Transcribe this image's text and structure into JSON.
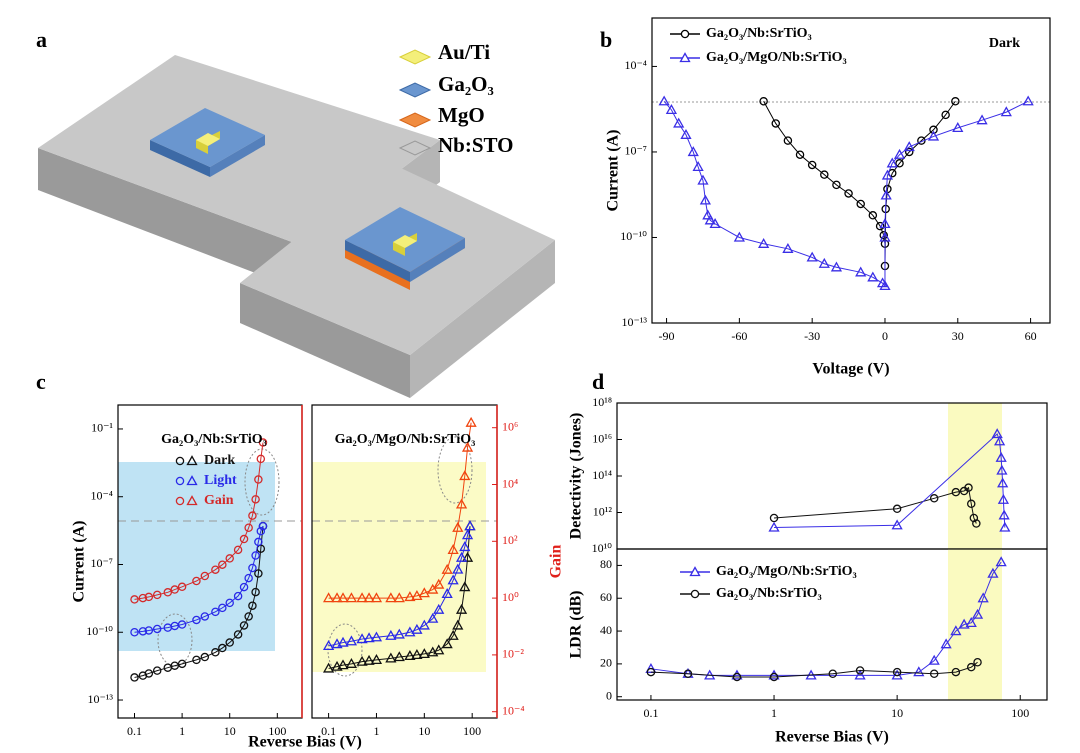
{
  "diagram": {
    "label": "a",
    "legend": [
      "Au/Ti",
      "Ga₂O₃",
      "MgO",
      "Nb:STO"
    ]
  },
  "chart_data": [
    {
      "type": "line",
      "label": "b",
      "annotation": "Dark",
      "xlabel": "Voltage (V)",
      "ylabel": "Current (A)",
      "xlim": [
        -96,
        68
      ],
      "xticks": [
        -90,
        -60,
        -30,
        0,
        30,
        60
      ],
      "yscale": "log",
      "ylim": [
        1e-13,
        0.005
      ],
      "yticks": [
        {
          "value": 1e-13,
          "label": "10⁻¹³"
        },
        {
          "value": 1e-10,
          "label": "10⁻¹⁰"
        },
        {
          "value": 1e-07,
          "label": "10⁻⁷"
        },
        {
          "value": 0.0001,
          "label": "10⁻⁴"
        }
      ],
      "series": [
        {
          "name": "Ga₂O₃/Nb:SrTiO₃",
          "color": "#000000",
          "marker": "circle",
          "x": [
            -50,
            -45,
            -40,
            -35,
            -30,
            -25,
            -20,
            -15,
            -10,
            -5,
            -2,
            -0.5,
            0,
            0,
            0.3,
            1,
            3,
            6,
            10,
            15,
            20,
            25,
            29
          ],
          "values": [
            6e-06,
            1e-06,
            2.5e-07,
            8e-08,
            3.5e-08,
            1.6e-08,
            7e-09,
            3.5e-09,
            1.5e-09,
            6e-10,
            2.5e-10,
            1.2e-10,
            6e-11,
            1e-11,
            1e-09,
            5e-09,
            1.8e-08,
            4e-08,
            1e-07,
            2.5e-07,
            6e-07,
            2e-06,
            6e-06
          ]
        },
        {
          "name": "Ga₂O₃/MgO/Nb:SrTiO₃",
          "color": "#3a2ee6",
          "marker": "triangle",
          "x": [
            -91,
            -88,
            -85,
            -82,
            -79,
            -77,
            -75,
            -74,
            -73,
            -72,
            -70,
            -60,
            -50,
            -40,
            -30,
            -25,
            -20,
            -10,
            -5,
            -1,
            0,
            0,
            0,
            0.5,
            1,
            3,
            6,
            10,
            20,
            30,
            40,
            50,
            59
          ],
          "values": [
            6e-06,
            3e-06,
            1e-06,
            4e-07,
            1e-07,
            3e-08,
            1e-08,
            2e-09,
            6e-10,
            4e-10,
            3e-10,
            1e-10,
            6e-11,
            4e-11,
            2e-11,
            1.2e-11,
            9e-12,
            6e-12,
            4e-12,
            2.5e-12,
            2e-12,
            1e-10,
            3e-10,
            3e-09,
            1.5e-08,
            4e-08,
            8e-08,
            1.5e-07,
            3.5e-07,
            7e-07,
            1.3e-06,
            2.5e-06,
            6e-06
          ]
        }
      ]
    },
    {
      "type": "line",
      "label": "c",
      "title": "Ga₂O₃/Nb:SrTiO₃",
      "xlabel": "Reverse Bias (V)",
      "ylabel": "Current (A)",
      "xscale": "log",
      "xlim": [
        0.045,
        330
      ],
      "xticks": [
        0.1,
        1,
        10,
        100
      ],
      "yscale": "log",
      "ylim": [
        1.6e-14,
        1.15
      ],
      "yticks": [
        {
          "value": 1e-13,
          "label": "10⁻¹³"
        },
        {
          "value": 1e-10,
          "label": "10⁻¹⁰"
        },
        {
          "value": 1e-07,
          "label": "10⁻⁷"
        },
        {
          "value": 0.0001,
          "label": "10⁻⁴"
        },
        {
          "value": 0.1,
          "label": "10⁻¹"
        }
      ],
      "y2scale": "log",
      "y2lim": [
        6e-05,
        6300000.0
      ],
      "series": [
        {
          "name": "Dark",
          "color": "#111111",
          "marker": "circle",
          "x": [
            0.1,
            0.15,
            0.2,
            0.3,
            0.5,
            0.7,
            1,
            2,
            3,
            5,
            7,
            10,
            15,
            20,
            25,
            30,
            35,
            40,
            45,
            50
          ],
          "values": [
            1e-12,
            1.2e-12,
            1.5e-12,
            2e-12,
            2.7e-12,
            3.3e-12,
            4e-12,
            6e-12,
            8e-12,
            1.3e-11,
            2e-11,
            3.5e-11,
            8e-11,
            2e-10,
            5e-10,
            1.5e-09,
            6e-09,
            4e-08,
            5e-07,
            5e-06
          ]
        },
        {
          "name": "Light",
          "color": "#2a2ae8",
          "marker": "circle",
          "x": [
            0.1,
            0.15,
            0.2,
            0.3,
            0.5,
            0.7,
            1,
            2,
            3,
            5,
            7,
            10,
            15,
            20,
            25,
            30,
            35,
            40,
            45,
            50
          ],
          "values": [
            1e-10,
            1.1e-10,
            1.2e-10,
            1.4e-10,
            1.6e-10,
            1.9e-10,
            2.2e-10,
            3.5e-10,
            5e-10,
            8e-10,
            1.2e-09,
            2e-09,
            4e-09,
            1e-08,
            2.5e-08,
            7e-08,
            2.5e-07,
            1e-06,
            3e-06,
            5e-06
          ]
        },
        {
          "name": "Gain",
          "color": "#d42a2a",
          "marker": "circle",
          "axis": "y2",
          "x": [
            0.1,
            0.15,
            0.2,
            0.3,
            0.5,
            0.7,
            1,
            2,
            3,
            5,
            7,
            10,
            15,
            20,
            25,
            30,
            35,
            40,
            45,
            50
          ],
          "values": [
            0.9,
            1,
            1.1,
            1.3,
            1.6,
            2,
            2.5,
            4,
            6,
            10,
            15,
            25,
            50,
            120,
            300,
            800,
            3000,
            15000,
            80000,
            300000
          ]
        }
      ]
    },
    {
      "type": "line",
      "title": "Ga₂O₃/MgO/Nb:SrTiO₃",
      "y2label": "Gain",
      "xscale": "log",
      "xlim": [
        0.045,
        330
      ],
      "xticks": [
        0.1,
        1,
        10,
        100
      ],
      "yscale": "log",
      "ylim": [
        1.6e-14,
        1.15
      ],
      "y2scale": "log",
      "y2lim": [
        6e-05,
        6300000.0
      ],
      "y2ticks": [
        {
          "value": 0.0001,
          "label": "10⁻⁴"
        },
        {
          "value": 0.01,
          "label": "10⁻²"
        },
        {
          "value": 1,
          "label": "10⁰"
        },
        {
          "value": 100,
          "label": "10²"
        },
        {
          "value": 10000,
          "label": "10⁴"
        },
        {
          "value": 1000000,
          "label": "10⁶"
        }
      ],
      "series": [
        {
          "color": "#111111",
          "marker": "triangle",
          "x": [
            0.1,
            0.15,
            0.2,
            0.3,
            0.5,
            0.7,
            1,
            2,
            3,
            5,
            7,
            10,
            15,
            20,
            30,
            40,
            50,
            60,
            70,
            80,
            90
          ],
          "values": [
            2.5e-12,
            3e-12,
            3.5e-12,
            4e-12,
            5e-12,
            5.5e-12,
            6e-12,
            7e-12,
            8e-12,
            9e-12,
            1e-11,
            1.1e-11,
            1.3e-11,
            1.6e-11,
            3e-11,
            7e-11,
            2e-10,
            1e-09,
            1e-08,
            2e-07,
            5e-06
          ]
        },
        {
          "color": "#2a2ae8",
          "marker": "triangle",
          "x": [
            0.1,
            0.15,
            0.2,
            0.3,
            0.5,
            0.7,
            1,
            2,
            3,
            5,
            7,
            10,
            15,
            20,
            30,
            40,
            50,
            60,
            70,
            80,
            90
          ],
          "values": [
            2.5e-11,
            3e-11,
            3.5e-11,
            4e-11,
            5e-11,
            5.5e-11,
            6e-11,
            7e-11,
            8e-11,
            1e-10,
            1.3e-10,
            2e-10,
            4e-10,
            1e-09,
            5e-09,
            2e-08,
            6e-08,
            2e-07,
            6e-07,
            2e-06,
            5e-06
          ]
        },
        {
          "color": "#f0440f",
          "marker": "triangle",
          "axis": "y2",
          "x": [
            0.1,
            0.15,
            0.2,
            0.3,
            0.5,
            0.7,
            1,
            2,
            3,
            5,
            7,
            10,
            15,
            20,
            30,
            40,
            50,
            60,
            70,
            80,
            95
          ],
          "values": [
            1,
            1,
            1,
            1,
            1,
            1,
            1,
            1,
            1,
            1.1,
            1.2,
            1.5,
            2,
            3,
            10,
            50,
            300,
            2000,
            20000,
            200000,
            1500000
          ]
        }
      ]
    },
    {
      "type": "line",
      "label": "d",
      "ylabel": "Detectivity (Jones)",
      "xscale": "log",
      "xlim": [
        0.053,
        165
      ],
      "yscale": "log",
      "ylim": [
        10000000000.0,
        1e+18
      ],
      "yticks": [
        {
          "value": 10000000000.0,
          "label": "10¹⁰"
        },
        {
          "value": 1000000000000.0,
          "label": "10¹²"
        },
        {
          "value": 100000000000000.0,
          "label": "10¹⁴"
        },
        {
          "value": 1e+16,
          "label": "10¹⁶"
        },
        {
          "value": 1e+18,
          "label": "10¹⁸"
        }
      ],
      "series": [
        {
          "color": "#111111",
          "marker": "circle",
          "x": [
            1,
            10,
            20,
            30,
            35,
            38,
            40,
            42,
            44
          ],
          "values": [
            500000000000.0,
            1600000000000.0,
            6000000000000.0,
            13000000000000.0,
            15000000000000.0,
            23000000000000.0,
            3000000000000.0,
            500000000000.0,
            250000000000.0
          ]
        },
        {
          "color": "#3a2ee6",
          "marker": "triangle",
          "x": [
            1,
            10,
            65,
            68,
            70,
            71,
            72,
            73,
            74,
            75
          ],
          "values": [
            150000000000.0,
            200000000000.0,
            2e+16,
            8000000000000000.0,
            1000000000000000.0,
            200000000000000.0,
            40000000000000.0,
            5000000000000.0,
            700000000000.0,
            150000000000.0
          ]
        }
      ]
    },
    {
      "type": "line",
      "ylabel": "LDR (dB)",
      "xlabel": "Reverse Bias (V)",
      "xscale": "log",
      "xlim": [
        0.053,
        165
      ],
      "xticks": [
        0.1,
        1,
        10,
        100
      ],
      "ylim": [
        -2,
        90
      ],
      "yticks": [
        0,
        20,
        40,
        60,
        80
      ],
      "series": [
        {
          "name": "Ga₂O₃/MgO/Nb:SrTiO₃",
          "color": "#3a2ee6",
          "marker": "triangle",
          "x": [
            0.1,
            0.2,
            0.3,
            0.5,
            1,
            2,
            5,
            10,
            15,
            20,
            25,
            30,
            35,
            40,
            45,
            50,
            60,
            70
          ],
          "values": [
            17,
            14,
            13,
            13,
            13,
            13,
            13,
            13,
            15,
            22,
            32,
            40,
            44,
            45,
            50,
            60,
            75,
            82
          ]
        },
        {
          "name": "Ga₂O₃/Nb:SrTiO₃",
          "color": "#111111",
          "marker": "circle",
          "x": [
            0.1,
            0.2,
            0.5,
            1,
            3,
            5,
            10,
            20,
            30,
            40,
            45
          ],
          "values": [
            15,
            14,
            12,
            12,
            14,
            16,
            15,
            14,
            15,
            18,
            21
          ]
        }
      ]
    }
  ]
}
